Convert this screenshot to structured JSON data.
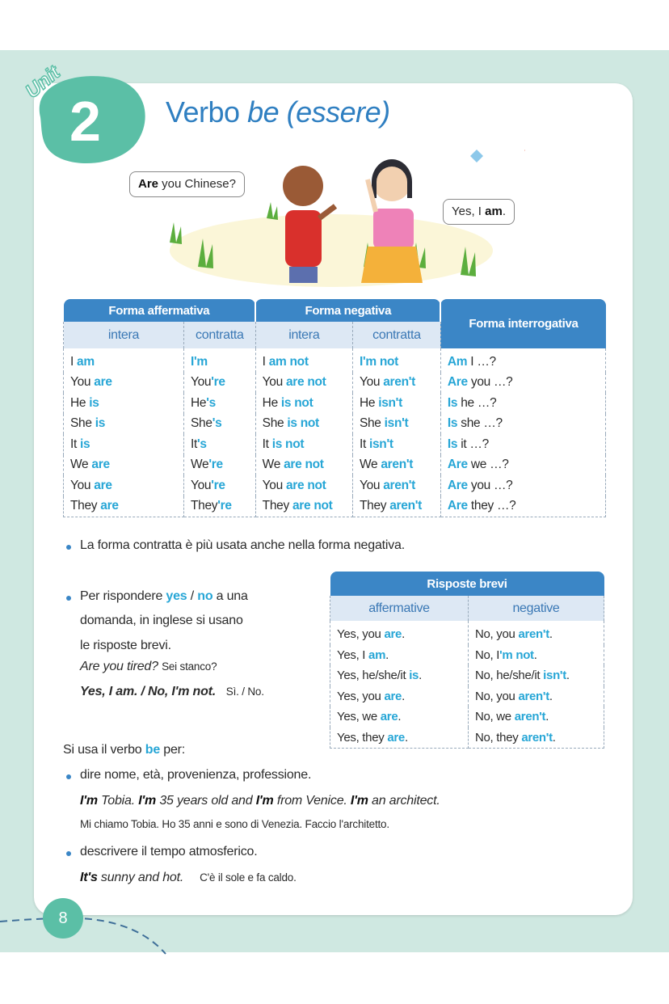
{
  "header": {
    "unit_label": "Unit",
    "unit_number": "2",
    "title_parts": [
      {
        "t": "Verbo ",
        "i": false
      },
      {
        "t": "be",
        "i": true
      },
      {
        "t": " (essere)",
        "i": true
      }
    ]
  },
  "illustration": {
    "bubble_left": [
      {
        "t": "Are",
        "b": true
      },
      {
        "t": " you Chinese?",
        "b": false
      }
    ],
    "bubble_right": [
      {
        "t": "Yes, I ",
        "b": false
      },
      {
        "t": "am",
        "b": true
      },
      {
        "t": ".",
        "b": false
      }
    ]
  },
  "colors": {
    "accent_blue": "#27a6d6",
    "header_blue": "#3b86c6",
    "teal": "#5bbfa6",
    "background": "#cfe8e1"
  },
  "verb_table": {
    "group_headers": [
      "Forma affermativa",
      "Forma negativa",
      "Forma interrogativa"
    ],
    "sub_headers": [
      "intera",
      "contratta",
      "intera",
      "contratta"
    ],
    "rows": [
      [
        [
          [
            "I ",
            0
          ],
          [
            "am",
            1
          ]
        ],
        [
          [
            "I'm",
            1
          ]
        ],
        [
          [
            "I ",
            0
          ],
          [
            "am not",
            1
          ]
        ],
        [
          [
            "I'm not",
            1
          ]
        ],
        [
          [
            "Am",
            1
          ],
          [
            " I …?",
            0
          ]
        ]
      ],
      [
        [
          [
            "You ",
            0
          ],
          [
            "are",
            1
          ]
        ],
        [
          [
            "You",
            0
          ],
          [
            "'re",
            1
          ]
        ],
        [
          [
            "You ",
            0
          ],
          [
            "are not",
            1
          ]
        ],
        [
          [
            "You ",
            0
          ],
          [
            "aren't",
            1
          ]
        ],
        [
          [
            "Are",
            1
          ],
          [
            " you …?",
            0
          ]
        ]
      ],
      [
        [
          [
            "He ",
            0
          ],
          [
            "is",
            1
          ]
        ],
        [
          [
            "He",
            0
          ],
          [
            "'s",
            1
          ]
        ],
        [
          [
            "He ",
            0
          ],
          [
            "is not",
            1
          ]
        ],
        [
          [
            "He ",
            0
          ],
          [
            "isn't",
            1
          ]
        ],
        [
          [
            "Is",
            1
          ],
          [
            " he …?",
            0
          ]
        ]
      ],
      [
        [
          [
            "She ",
            0
          ],
          [
            "is",
            1
          ]
        ],
        [
          [
            "She",
            0
          ],
          [
            "'s",
            1
          ]
        ],
        [
          [
            "She ",
            0
          ],
          [
            "is not",
            1
          ]
        ],
        [
          [
            "She ",
            0
          ],
          [
            "isn't",
            1
          ]
        ],
        [
          [
            "Is",
            1
          ],
          [
            " she …?",
            0
          ]
        ]
      ],
      [
        [
          [
            "It ",
            0
          ],
          [
            "is",
            1
          ]
        ],
        [
          [
            "It",
            0
          ],
          [
            "'s",
            1
          ]
        ],
        [
          [
            "It ",
            0
          ],
          [
            "is not",
            1
          ]
        ],
        [
          [
            "It ",
            0
          ],
          [
            "isn't",
            1
          ]
        ],
        [
          [
            "Is",
            1
          ],
          [
            " it …?",
            0
          ]
        ]
      ],
      [
        [
          [
            "We ",
            0
          ],
          [
            "are",
            1
          ]
        ],
        [
          [
            "We",
            0
          ],
          [
            "'re",
            1
          ]
        ],
        [
          [
            "We ",
            0
          ],
          [
            "are not",
            1
          ]
        ],
        [
          [
            "We ",
            0
          ],
          [
            "aren't",
            1
          ]
        ],
        [
          [
            "Are",
            1
          ],
          [
            " we …?",
            0
          ]
        ]
      ],
      [
        [
          [
            "You ",
            0
          ],
          [
            "are",
            1
          ]
        ],
        [
          [
            "You",
            0
          ],
          [
            "'re",
            1
          ]
        ],
        [
          [
            "You ",
            0
          ],
          [
            "are not",
            1
          ]
        ],
        [
          [
            "You ",
            0
          ],
          [
            "aren't",
            1
          ]
        ],
        [
          [
            "Are",
            1
          ],
          [
            " you …?",
            0
          ]
        ]
      ],
      [
        [
          [
            "They ",
            0
          ],
          [
            "are",
            1
          ]
        ],
        [
          [
            "They",
            0
          ],
          [
            "'re",
            1
          ]
        ],
        [
          [
            "They ",
            0
          ],
          [
            "are not",
            1
          ]
        ],
        [
          [
            "They ",
            0
          ],
          [
            "aren't",
            1
          ]
        ],
        [
          [
            "Are",
            1
          ],
          [
            " they …?",
            0
          ]
        ]
      ]
    ]
  },
  "note_contracted": "La forma contratta è più usata anche nella forma negativa.",
  "short_answers_text": {
    "line1": [
      {
        "t": "Per rispondere ",
        "b": false
      },
      {
        "t": "yes",
        "b": true
      },
      {
        "t": " / ",
        "b": false
      },
      {
        "t": "no",
        "b": true
      },
      {
        "t": " a una",
        "b": false
      }
    ],
    "line2": "domanda, in inglese si usano",
    "line3": "le risposte brevi.",
    "example_q": "Are you tired?",
    "example_q_tr": "Sei stanco?",
    "example_a": "Yes, I am. / No, I'm not.",
    "example_a_tr": "Sì. / No."
  },
  "short_table": {
    "header": "Risposte brevi",
    "sub_headers": [
      "affermative",
      "negative"
    ],
    "rows": [
      [
        [
          [
            "Yes, you ",
            0
          ],
          [
            "are",
            1
          ],
          [
            ".",
            0
          ]
        ],
        [
          [
            "No, you ",
            0
          ],
          [
            "aren't",
            1
          ],
          [
            ".",
            0
          ]
        ]
      ],
      [
        [
          [
            "Yes, I ",
            0
          ],
          [
            "am",
            1
          ],
          [
            ".",
            0
          ]
        ],
        [
          [
            "No, I",
            0
          ],
          [
            "'m not",
            1
          ],
          [
            ".",
            0
          ]
        ]
      ],
      [
        [
          [
            "Yes, he/she/it ",
            0
          ],
          [
            "is",
            1
          ],
          [
            ".",
            0
          ]
        ],
        [
          [
            "No, he/she/it ",
            0
          ],
          [
            "isn't",
            1
          ],
          [
            ".",
            0
          ]
        ]
      ],
      [
        [
          [
            "Yes, you ",
            0
          ],
          [
            "are",
            1
          ],
          [
            ".",
            0
          ]
        ],
        [
          [
            "No, you ",
            0
          ],
          [
            "aren't",
            1
          ],
          [
            ".",
            0
          ]
        ]
      ],
      [
        [
          [
            "Yes, we ",
            0
          ],
          [
            "are",
            1
          ],
          [
            ".",
            0
          ]
        ],
        [
          [
            "No, we ",
            0
          ],
          [
            "aren't",
            1
          ],
          [
            ".",
            0
          ]
        ]
      ],
      [
        [
          [
            "Yes, they ",
            0
          ],
          [
            "are",
            1
          ],
          [
            ".",
            0
          ]
        ],
        [
          [
            "No, they ",
            0
          ],
          [
            "aren't",
            1
          ],
          [
            ".",
            0
          ]
        ]
      ]
    ]
  },
  "uses": {
    "intro": [
      {
        "t": "Si usa il verbo ",
        "b": false
      },
      {
        "t": "be",
        "b": true
      },
      {
        "t": " per:",
        "b": false
      }
    ],
    "items": [
      {
        "label": "dire nome, età, provenienza, professione.",
        "example": [
          {
            "t": "I'm",
            "b": true
          },
          {
            "t": " Tobia. ",
            "b": false
          },
          {
            "t": "I'm",
            "b": true
          },
          {
            "t": " 35 years old and ",
            "b": false
          },
          {
            "t": "I'm",
            "b": true
          },
          {
            "t": " from Venice. ",
            "b": false
          },
          {
            "t": "I'm",
            "b": true
          },
          {
            "t": " an architect.",
            "b": false
          }
        ],
        "translation": "Mi chiamo Tobia. Ho 35 anni e sono di Venezia. Faccio l'architetto."
      },
      {
        "label": "descrivere il tempo atmosferico.",
        "example": [
          {
            "t": "It's",
            "b": true
          },
          {
            "t": " sunny and hot.",
            "b": false
          }
        ],
        "translation": "C'è il sole e fa caldo."
      }
    ]
  },
  "footer": {
    "page_number": "8"
  }
}
